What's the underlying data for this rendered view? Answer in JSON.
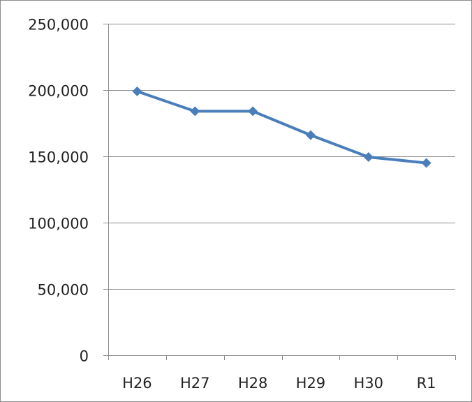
{
  "chart_data": {
    "type": "line",
    "categories": [
      "H26",
      "H27",
      "H28",
      "H29",
      "H30",
      "R1"
    ],
    "series": [
      {
        "values": [
          199000,
          184000,
          184000,
          166000,
          149500,
          145000
        ]
      }
    ],
    "ylim": [
      0,
      250000
    ],
    "yticks": [
      0,
      50000,
      100000,
      150000,
      200000,
      250000
    ],
    "ytick_labels": [
      "0",
      "50,000",
      "100,000",
      "150,000",
      "200,000",
      "250,000"
    ],
    "grid": true,
    "legend": "none",
    "title": "",
    "xlabel": "",
    "ylabel": "",
    "colors": {
      "line": "#4a7ebb",
      "grid": "#8c8c8c",
      "axis": "#8c8c8c",
      "text": "#222222"
    }
  }
}
